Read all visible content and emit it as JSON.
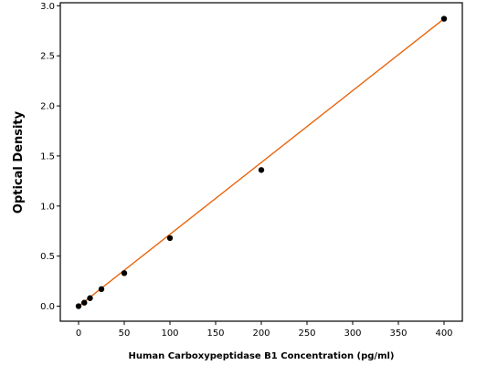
{
  "chart_data": {
    "type": "scatter",
    "title": "",
    "xlabel": "Human Carboxypeptidase B1 Concentration (pg/ml)",
    "ylabel": "Optical Density",
    "xlim": [
      -20,
      420
    ],
    "ylim": [
      -0.15,
      3.03
    ],
    "xticks": [
      0,
      50,
      100,
      150,
      200,
      250,
      300,
      350,
      400
    ],
    "yticks": [
      0.0,
      0.5,
      1.0,
      1.5,
      2.0,
      2.5,
      3.0
    ],
    "xtick_labels": [
      "0",
      "50",
      "100",
      "150",
      "200",
      "250",
      "300",
      "350",
      "400"
    ],
    "ytick_labels": [
      "0.0",
      "0.5",
      "1.0",
      "1.5",
      "2.0",
      "2.5",
      "3.0"
    ],
    "grid": false,
    "series": [
      {
        "type": "scatter",
        "color": "#000000",
        "x": [
          0,
          6.25,
          12.5,
          25,
          50,
          100,
          200,
          400
        ],
        "y": [
          0.0,
          0.035,
          0.08,
          0.17,
          0.33,
          0.68,
          1.36,
          2.87
        ]
      },
      {
        "type": "line",
        "color": "#e8650a",
        "x": [
          0,
          400
        ],
        "y": [
          0.0,
          2.87
        ]
      }
    ]
  }
}
